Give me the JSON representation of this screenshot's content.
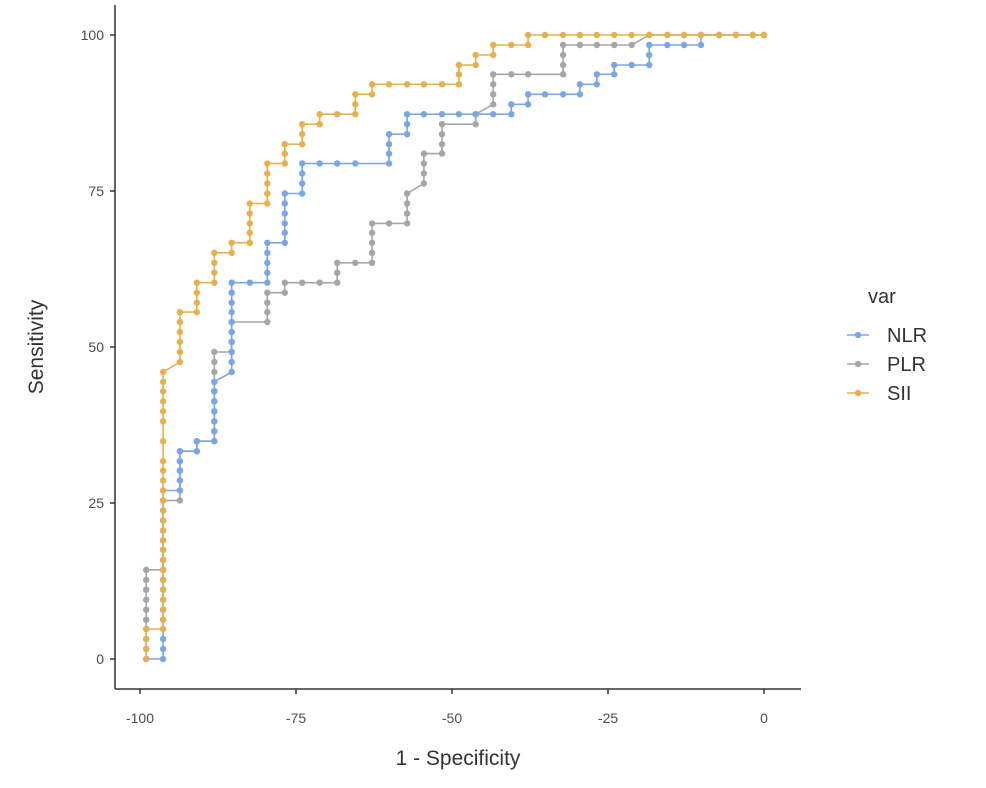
{
  "chart_data": {
    "type": "line",
    "title": "",
    "xlabel": "1 - Specificity",
    "ylabel": "Sensitivity",
    "xlim": [
      -100,
      0
    ],
    "ylim": [
      0,
      100
    ],
    "xticks": [
      -100,
      -75,
      -50,
      -25,
      0
    ],
    "yticks": [
      0,
      25,
      50,
      75,
      100
    ],
    "xtick_labels": [
      "-100",
      "-75",
      "-50",
      "-25",
      "0"
    ],
    "ytick_labels": [
      "0",
      "25",
      "50",
      "75",
      "100"
    ],
    "grid": false,
    "legend": {
      "title": "var",
      "position": "right"
    },
    "series": [
      {
        "name": "NLR",
        "color": "#7aa6e6",
        "points": [
          [
            -99,
            0
          ],
          [
            -96.3,
            0
          ],
          [
            -96.3,
            1.6
          ],
          [
            -96.3,
            3.2
          ],
          [
            -96.3,
            4.8
          ],
          [
            -96.3,
            6.3
          ],
          [
            -96.3,
            7.9
          ],
          [
            -96.3,
            9.5
          ],
          [
            -96.3,
            11.1
          ],
          [
            -96.3,
            12.7
          ],
          [
            -96.3,
            14.3
          ],
          [
            -96.3,
            15.9
          ],
          [
            -96.3,
            17.5
          ],
          [
            -96.3,
            19.0
          ],
          [
            -96.3,
            20.6
          ],
          [
            -96.3,
            22.2
          ],
          [
            -96.3,
            23.8
          ],
          [
            -96.3,
            25.4
          ],
          [
            -96.3,
            27.0
          ],
          [
            -93.6,
            27.0
          ],
          [
            -93.6,
            28.6
          ],
          [
            -93.6,
            30.2
          ],
          [
            -93.6,
            31.7
          ],
          [
            -93.6,
            33.3
          ],
          [
            -90.9,
            33.3
          ],
          [
            -90.9,
            34.9
          ],
          [
            -88.1,
            34.9
          ],
          [
            -88.1,
            36.5
          ],
          [
            -88.1,
            38.1
          ],
          [
            -88.1,
            39.7
          ],
          [
            -88.1,
            41.3
          ],
          [
            -88.1,
            42.9
          ],
          [
            -88.1,
            44.4
          ],
          [
            -85.3,
            46.0
          ],
          [
            -85.3,
            47.6
          ],
          [
            -85.3,
            49.2
          ],
          [
            -85.3,
            50.8
          ],
          [
            -85.3,
            52.4
          ],
          [
            -85.3,
            54.0
          ],
          [
            -85.3,
            55.6
          ],
          [
            -85.3,
            57.1
          ],
          [
            -85.3,
            58.7
          ],
          [
            -85.3,
            60.3
          ],
          [
            -82.4,
            60.3
          ],
          [
            -79.6,
            60.3
          ],
          [
            -79.6,
            61.9
          ],
          [
            -79.6,
            63.5
          ],
          [
            -79.6,
            65.1
          ],
          [
            -79.6,
            66.7
          ],
          [
            -76.8,
            66.7
          ],
          [
            -76.8,
            68.3
          ],
          [
            -76.8,
            69.8
          ],
          [
            -76.8,
            71.4
          ],
          [
            -76.8,
            73.0
          ],
          [
            -76.8,
            74.6
          ],
          [
            -74.0,
            74.6
          ],
          [
            -74.0,
            76.2
          ],
          [
            -74.0,
            77.8
          ],
          [
            -74.0,
            79.4
          ],
          [
            -71.2,
            79.4
          ],
          [
            -68.4,
            79.4
          ],
          [
            -65.5,
            79.4
          ],
          [
            -60.1,
            79.4
          ],
          [
            -60.1,
            81.0
          ],
          [
            -60.1,
            82.5
          ],
          [
            -60.1,
            84.1
          ],
          [
            -57.2,
            84.1
          ],
          [
            -57.2,
            85.7
          ],
          [
            -57.2,
            87.3
          ],
          [
            -54.5,
            87.3
          ],
          [
            -51.6,
            87.3
          ],
          [
            -48.9,
            87.3
          ],
          [
            -46.2,
            87.3
          ],
          [
            -43.4,
            87.3
          ],
          [
            -40.5,
            87.3
          ],
          [
            -40.5,
            88.9
          ],
          [
            -37.8,
            88.9
          ],
          [
            -37.8,
            90.5
          ],
          [
            -35.1,
            90.5
          ],
          [
            -32.2,
            90.5
          ],
          [
            -29.5,
            90.5
          ],
          [
            -29.5,
            92.1
          ],
          [
            -26.8,
            92.1
          ],
          [
            -26.8,
            93.7
          ],
          [
            -24.0,
            93.7
          ],
          [
            -24.0,
            95.2
          ],
          [
            -21.2,
            95.2
          ],
          [
            -18.4,
            95.2
          ],
          [
            -18.4,
            96.8
          ],
          [
            -18.4,
            98.4
          ],
          [
            -15.5,
            98.4
          ],
          [
            -12.8,
            98.4
          ],
          [
            -10.1,
            98.4
          ],
          [
            -10.1,
            100
          ],
          [
            -7.2,
            100
          ],
          [
            -4.5,
            100
          ],
          [
            -1.8,
            100
          ],
          [
            0,
            100
          ]
        ]
      },
      {
        "name": "PLR",
        "color": "#a6a6a6",
        "points": [
          [
            -99,
            0
          ],
          [
            -99,
            1.6
          ],
          [
            -99,
            3.2
          ],
          [
            -99,
            4.8
          ],
          [
            -99,
            6.3
          ],
          [
            -99,
            7.9
          ],
          [
            -99,
            9.5
          ],
          [
            -99,
            11.1
          ],
          [
            -99,
            12.7
          ],
          [
            -99,
            14.3
          ],
          [
            -96.3,
            14.3
          ],
          [
            -96.3,
            15.9
          ],
          [
            -96.3,
            17.5
          ],
          [
            -96.3,
            19.0
          ],
          [
            -96.3,
            20.6
          ],
          [
            -96.3,
            22.2
          ],
          [
            -96.3,
            23.8
          ],
          [
            -96.3,
            25.4
          ],
          [
            -93.6,
            25.4
          ],
          [
            -93.6,
            27.0
          ],
          [
            -93.6,
            28.6
          ],
          [
            -93.6,
            30.2
          ],
          [
            -93.6,
            31.7
          ],
          [
            -93.6,
            33.3
          ],
          [
            -90.9,
            33.3
          ],
          [
            -90.9,
            34.9
          ],
          [
            -88.1,
            34.9
          ],
          [
            -88.1,
            36.5
          ],
          [
            -88.1,
            38.1
          ],
          [
            -88.1,
            39.7
          ],
          [
            -88.1,
            41.3
          ],
          [
            -88.1,
            42.9
          ],
          [
            -88.1,
            44.4
          ],
          [
            -88.1,
            46.0
          ],
          [
            -88.1,
            47.6
          ],
          [
            -88.1,
            49.2
          ],
          [
            -85.3,
            49.2
          ],
          [
            -85.3,
            50.8
          ],
          [
            -85.3,
            52.4
          ],
          [
            -85.3,
            54.0
          ],
          [
            -79.6,
            54.0
          ],
          [
            -79.6,
            55.6
          ],
          [
            -79.6,
            57.1
          ],
          [
            -79.6,
            58.7
          ],
          [
            -76.8,
            58.7
          ],
          [
            -76.8,
            60.3
          ],
          [
            -74.0,
            60.3
          ],
          [
            -71.2,
            60.3
          ],
          [
            -68.4,
            60.3
          ],
          [
            -68.4,
            61.9
          ],
          [
            -68.4,
            63.5
          ],
          [
            -65.5,
            63.5
          ],
          [
            -62.8,
            63.5
          ],
          [
            -62.8,
            65.1
          ],
          [
            -62.8,
            66.7
          ],
          [
            -62.8,
            68.3
          ],
          [
            -62.8,
            69.8
          ],
          [
            -60.1,
            69.8
          ],
          [
            -57.2,
            69.8
          ],
          [
            -57.2,
            71.4
          ],
          [
            -57.2,
            73.0
          ],
          [
            -57.2,
            74.6
          ],
          [
            -54.5,
            76.2
          ],
          [
            -54.5,
            77.8
          ],
          [
            -54.5,
            79.4
          ],
          [
            -54.5,
            81.0
          ],
          [
            -51.6,
            81.0
          ],
          [
            -51.6,
            82.5
          ],
          [
            -51.6,
            84.1
          ],
          [
            -51.6,
            85.7
          ],
          [
            -46.2,
            85.7
          ],
          [
            -46.2,
            87.3
          ],
          [
            -43.4,
            88.9
          ],
          [
            -43.4,
            90.5
          ],
          [
            -43.4,
            92.1
          ],
          [
            -43.4,
            93.7
          ],
          [
            -40.5,
            93.7
          ],
          [
            -37.8,
            93.7
          ],
          [
            -32.2,
            93.7
          ],
          [
            -32.2,
            95.2
          ],
          [
            -32.2,
            96.8
          ],
          [
            -32.2,
            98.4
          ],
          [
            -29.5,
            98.4
          ],
          [
            -26.8,
            98.4
          ],
          [
            -24.0,
            98.4
          ],
          [
            -21.2,
            98.4
          ],
          [
            -18.4,
            100
          ],
          [
            -15.5,
            100
          ],
          [
            -12.8,
            100
          ],
          [
            -10.1,
            100
          ],
          [
            -7.2,
            100
          ],
          [
            -4.5,
            100
          ],
          [
            -1.8,
            100
          ],
          [
            0,
            100
          ]
        ]
      },
      {
        "name": "SII",
        "color": "#e6b04e",
        "points": [
          [
            -99,
            0
          ],
          [
            -99,
            1.6
          ],
          [
            -99,
            3.2
          ],
          [
            -99,
            4.8
          ],
          [
            -96.3,
            4.8
          ],
          [
            -96.3,
            6.3
          ],
          [
            -96.3,
            7.9
          ],
          [
            -96.3,
            9.5
          ],
          [
            -96.3,
            11.1
          ],
          [
            -96.3,
            12.7
          ],
          [
            -96.3,
            14.3
          ],
          [
            -96.3,
            15.9
          ],
          [
            -96.3,
            17.5
          ],
          [
            -96.3,
            19.0
          ],
          [
            -96.3,
            20.6
          ],
          [
            -96.3,
            22.2
          ],
          [
            -96.3,
            23.8
          ],
          [
            -96.3,
            25.4
          ],
          [
            -96.3,
            27.0
          ],
          [
            -96.3,
            28.6
          ],
          [
            -96.3,
            30.2
          ],
          [
            -96.3,
            31.7
          ],
          [
            -96.3,
            34.9
          ],
          [
            -96.3,
            38.1
          ],
          [
            -96.3,
            39.7
          ],
          [
            -96.3,
            41.3
          ],
          [
            -96.3,
            42.9
          ],
          [
            -96.3,
            44.4
          ],
          [
            -96.3,
            46.0
          ],
          [
            -93.6,
            47.6
          ],
          [
            -93.6,
            49.2
          ],
          [
            -93.6,
            50.8
          ],
          [
            -93.6,
            52.4
          ],
          [
            -93.6,
            54.0
          ],
          [
            -93.6,
            55.6
          ],
          [
            -90.9,
            55.6
          ],
          [
            -90.9,
            57.1
          ],
          [
            -90.9,
            58.7
          ],
          [
            -90.9,
            60.3
          ],
          [
            -88.1,
            60.3
          ],
          [
            -88.1,
            61.9
          ],
          [
            -88.1,
            63.5
          ],
          [
            -88.1,
            65.1
          ],
          [
            -85.3,
            65.1
          ],
          [
            -85.3,
            66.7
          ],
          [
            -82.4,
            66.7
          ],
          [
            -82.4,
            68.3
          ],
          [
            -82.4,
            69.8
          ],
          [
            -82.4,
            71.4
          ],
          [
            -82.4,
            73.0
          ],
          [
            -79.6,
            73.0
          ],
          [
            -79.6,
            74.6
          ],
          [
            -79.6,
            76.2
          ],
          [
            -79.6,
            77.8
          ],
          [
            -79.6,
            79.4
          ],
          [
            -76.8,
            79.4
          ],
          [
            -76.8,
            81.0
          ],
          [
            -76.8,
            82.5
          ],
          [
            -74.0,
            82.5
          ],
          [
            -74.0,
            84.1
          ],
          [
            -74.0,
            85.7
          ],
          [
            -71.2,
            85.7
          ],
          [
            -71.2,
            87.3
          ],
          [
            -68.4,
            87.3
          ],
          [
            -65.5,
            87.3
          ],
          [
            -65.5,
            88.9
          ],
          [
            -65.5,
            90.5
          ],
          [
            -62.8,
            90.5
          ],
          [
            -62.8,
            92.1
          ],
          [
            -60.1,
            92.1
          ],
          [
            -57.2,
            92.1
          ],
          [
            -54.5,
            92.1
          ],
          [
            -51.6,
            92.1
          ],
          [
            -48.9,
            92.1
          ],
          [
            -48.9,
            93.7
          ],
          [
            -48.9,
            95.2
          ],
          [
            -46.2,
            95.2
          ],
          [
            -46.2,
            96.8
          ],
          [
            -43.4,
            96.8
          ],
          [
            -43.4,
            98.4
          ],
          [
            -40.5,
            98.4
          ],
          [
            -37.8,
            98.4
          ],
          [
            -37.8,
            100
          ],
          [
            -35.1,
            100
          ],
          [
            -32.2,
            100
          ],
          [
            -29.5,
            100
          ],
          [
            -26.8,
            100
          ],
          [
            -24.0,
            100
          ],
          [
            -21.2,
            100
          ],
          [
            -18.4,
            100
          ],
          [
            -15.5,
            100
          ],
          [
            -12.8,
            100
          ],
          [
            -10.1,
            100
          ],
          [
            -7.2,
            100
          ],
          [
            -4.5,
            100
          ],
          [
            -1.8,
            100
          ],
          [
            0,
            100
          ]
        ]
      }
    ]
  }
}
